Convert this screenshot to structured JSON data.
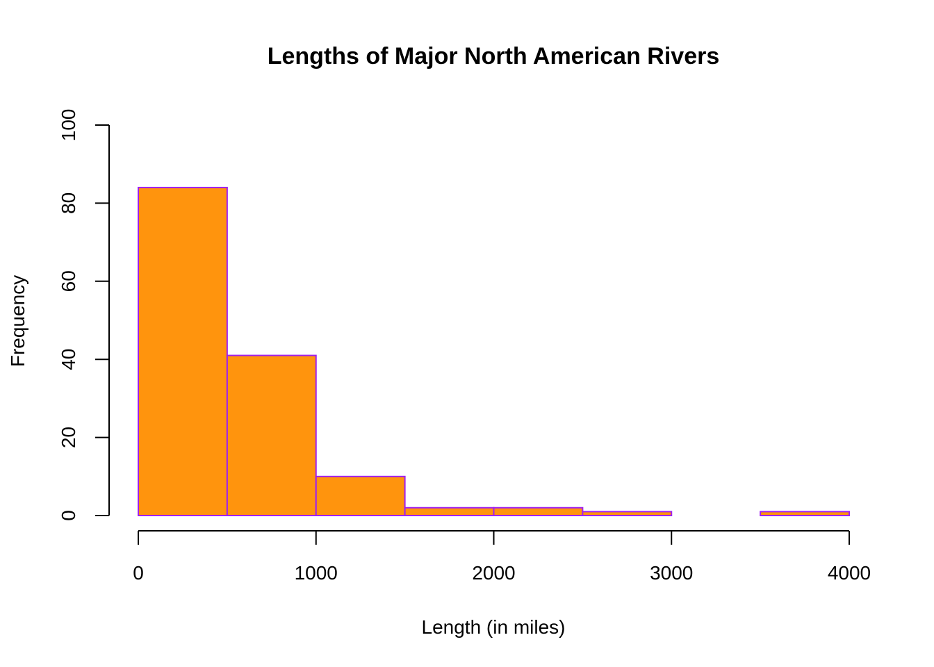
{
  "chart_data": {
    "type": "bar",
    "title": "Lengths of Major North American Rivers",
    "xlabel": "Length (in miles)",
    "ylabel": "Frequency",
    "bins": [
      {
        "start": 0,
        "end": 500,
        "count": 84
      },
      {
        "start": 500,
        "end": 1000,
        "count": 41
      },
      {
        "start": 1000,
        "end": 1500,
        "count": 10
      },
      {
        "start": 1500,
        "end": 2000,
        "count": 2
      },
      {
        "start": 2000,
        "end": 2500,
        "count": 2
      },
      {
        "start": 2500,
        "end": 3000,
        "count": 1
      },
      {
        "start": 3000,
        "end": 3500,
        "count": 0
      },
      {
        "start": 3500,
        "end": 4000,
        "count": 1
      }
    ],
    "xlim": [
      0,
      4000
    ],
    "ylim": [
      0,
      100
    ],
    "xticks": [
      0,
      1000,
      2000,
      3000,
      4000
    ],
    "yticks": [
      0,
      20,
      40,
      60,
      80,
      100
    ],
    "grid": false,
    "legend": "none",
    "bar_fill": "#ff940d",
    "bar_stroke": "#a020f0"
  }
}
